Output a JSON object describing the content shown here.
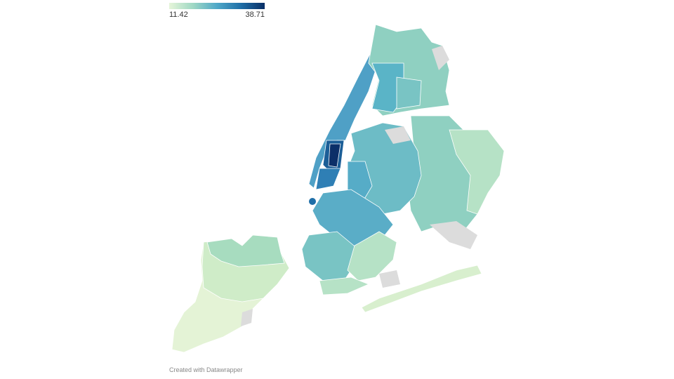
{
  "legend": {
    "min": 11.42,
    "max": 38.71,
    "colors": [
      "#e5f5d9",
      "#9fd8c4",
      "#4fa8c8",
      "#1f6fa8",
      "#0a2f66"
    ]
  },
  "footer": "Created with Datawrapper"
}
